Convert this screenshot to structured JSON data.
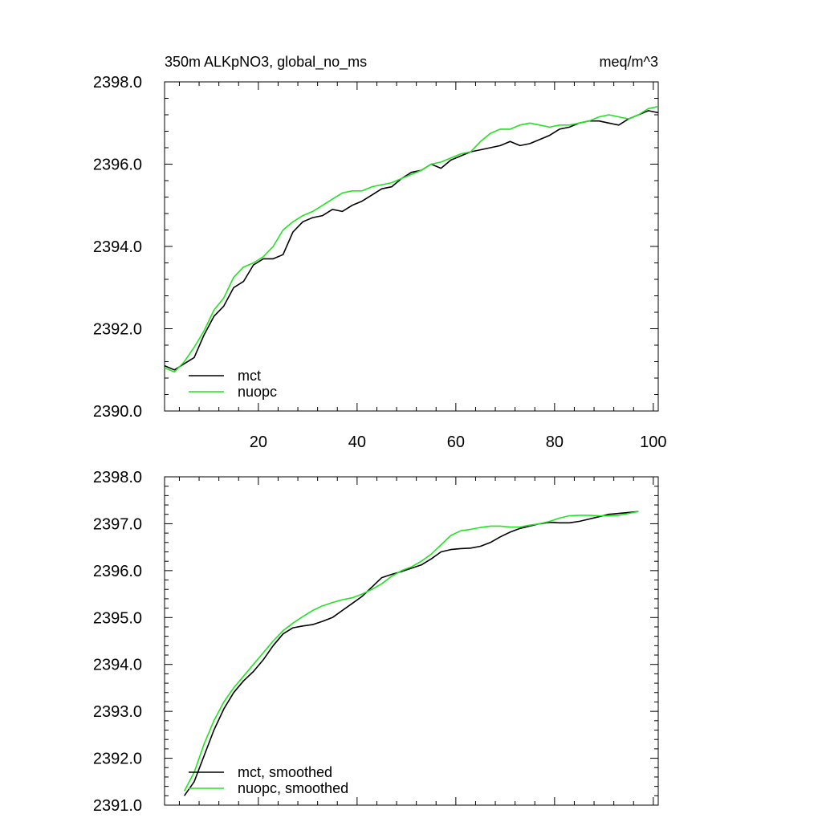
{
  "chart_data": [
    {
      "type": "line",
      "title_left": "350m ALKpNO3, global_no_ms",
      "title_right": "meq/m^3",
      "xlim": [
        1,
        101
      ],
      "ylim": [
        2390,
        2398
      ],
      "x_ticks": [
        20,
        40,
        60,
        80,
        100
      ],
      "x_tick_labels": [
        "20",
        "40",
        "60",
        "80",
        "100"
      ],
      "y_ticks": [
        2390,
        2392,
        2394,
        2396,
        2398
      ],
      "y_tick_labels": [
        "2390.0",
        "2392.0",
        "2394.0",
        "2396.0",
        "2398.0"
      ],
      "legend": "bottom-left",
      "series": [
        {
          "name": "mct",
          "color": "#000000",
          "x": [
            1,
            3,
            5,
            7,
            9,
            11,
            13,
            15,
            17,
            19,
            21,
            23,
            25,
            27,
            29,
            31,
            33,
            35,
            37,
            39,
            41,
            43,
            45,
            47,
            49,
            51,
            53,
            55,
            57,
            59,
            61,
            63,
            65,
            67,
            69,
            71,
            73,
            75,
            77,
            79,
            81,
            83,
            85,
            87,
            89,
            91,
            93,
            95,
            97,
            99,
            101
          ],
          "y": [
            2391.1,
            2391.0,
            2391.15,
            2391.3,
            2391.85,
            2392.3,
            2392.55,
            2393.0,
            2393.15,
            2393.55,
            2393.7,
            2393.7,
            2393.8,
            2394.35,
            2394.6,
            2394.7,
            2394.75,
            2394.9,
            2394.85,
            2395.0,
            2395.1,
            2395.25,
            2395.4,
            2395.45,
            2395.65,
            2395.8,
            2395.85,
            2396.0,
            2395.9,
            2396.1,
            2396.2,
            2396.3,
            2396.35,
            2396.4,
            2396.45,
            2396.55,
            2396.45,
            2396.5,
            2396.6,
            2396.7,
            2396.85,
            2396.9,
            2397.0,
            2397.05,
            2397.05,
            2397.0,
            2396.95,
            2397.1,
            2397.2,
            2397.3,
            2397.25
          ]
        },
        {
          "name": "nuopc",
          "color": "#22e322",
          "x": [
            1,
            3,
            5,
            7,
            9,
            11,
            13,
            15,
            17,
            19,
            21,
            23,
            25,
            27,
            29,
            31,
            33,
            35,
            37,
            39,
            41,
            43,
            45,
            47,
            49,
            51,
            53,
            55,
            57,
            59,
            61,
            63,
            65,
            67,
            69,
            71,
            73,
            75,
            77,
            79,
            81,
            83,
            85,
            87,
            89,
            91,
            93,
            95,
            97,
            99,
            101
          ],
          "y": [
            2391.05,
            2390.95,
            2391.2,
            2391.55,
            2391.95,
            2392.45,
            2392.75,
            2393.25,
            2393.5,
            2393.6,
            2393.75,
            2394.0,
            2394.4,
            2394.6,
            2394.75,
            2394.85,
            2395.0,
            2395.15,
            2395.3,
            2395.35,
            2395.35,
            2395.45,
            2395.5,
            2395.55,
            2395.65,
            2395.75,
            2395.85,
            2396.0,
            2396.05,
            2396.15,
            2396.25,
            2396.3,
            2396.55,
            2396.75,
            2396.85,
            2396.85,
            2396.95,
            2397.0,
            2396.95,
            2396.9,
            2396.95,
            2396.95,
            2397.0,
            2397.05,
            2397.15,
            2397.2,
            2397.15,
            2397.1,
            2397.2,
            2397.35,
            2397.4
          ]
        }
      ]
    },
    {
      "type": "line",
      "xlim": [
        1,
        101
      ],
      "ylim": [
        2391,
        2398
      ],
      "x_ticks": [
        20,
        40,
        60,
        80,
        100
      ],
      "y_ticks": [
        2391,
        2392,
        2393,
        2394,
        2395,
        2396,
        2397,
        2398
      ],
      "y_tick_labels": [
        "2391.0",
        "2392.0",
        "2393.0",
        "2394.0",
        "2395.0",
        "2396.0",
        "2397.0",
        "2398.0"
      ],
      "legend": "bottom-left",
      "series": [
        {
          "name": "mct, smoothed",
          "color": "#000000",
          "x": [
            5,
            7,
            9,
            11,
            13,
            15,
            17,
            19,
            21,
            23,
            25,
            27,
            29,
            31,
            33,
            35,
            37,
            39,
            41,
            43,
            45,
            47,
            49,
            51,
            53,
            55,
            57,
            59,
            61,
            63,
            65,
            67,
            69,
            71,
            73,
            75,
            77,
            79,
            81,
            83,
            85,
            87,
            89,
            91,
            93,
            95,
            97
          ],
          "y": [
            2391.2,
            2391.5,
            2392.05,
            2392.6,
            2393.05,
            2393.4,
            2393.65,
            2393.85,
            2394.1,
            2394.4,
            2394.65,
            2394.78,
            2394.82,
            2394.85,
            2394.92,
            2395.0,
            2395.15,
            2395.3,
            2395.45,
            2395.65,
            2395.85,
            2395.92,
            2395.98,
            2396.05,
            2396.12,
            2396.25,
            2396.4,
            2396.45,
            2396.47,
            2396.48,
            2396.52,
            2396.6,
            2396.72,
            2396.82,
            2396.9,
            2396.95,
            2397.0,
            2397.03,
            2397.02,
            2397.02,
            2397.05,
            2397.1,
            2397.15,
            2397.2,
            2397.22,
            2397.24,
            2397.26
          ]
        },
        {
          "name": "nuopc, smoothed",
          "color": "#22e322",
          "x": [
            5,
            7,
            9,
            11,
            13,
            15,
            17,
            19,
            21,
            23,
            25,
            27,
            29,
            31,
            33,
            35,
            37,
            39,
            41,
            43,
            45,
            47,
            49,
            51,
            53,
            55,
            57,
            59,
            61,
            63,
            65,
            67,
            69,
            71,
            73,
            75,
            77,
            79,
            81,
            83,
            85,
            87,
            89,
            91,
            93,
            95,
            97
          ],
          "y": [
            2391.3,
            2391.7,
            2392.3,
            2392.8,
            2393.2,
            2393.5,
            2393.75,
            2394.0,
            2394.25,
            2394.5,
            2394.72,
            2394.88,
            2395.02,
            2395.15,
            2395.25,
            2395.32,
            2395.38,
            2395.42,
            2395.5,
            2395.6,
            2395.72,
            2395.88,
            2396.0,
            2396.08,
            2396.2,
            2396.35,
            2396.55,
            2396.75,
            2396.85,
            2396.88,
            2396.92,
            2396.95,
            2396.95,
            2396.93,
            2396.93,
            2396.97,
            2397.0,
            2397.05,
            2397.12,
            2397.17,
            2397.18,
            2397.18,
            2397.17,
            2397.17,
            2397.18,
            2397.22,
            2397.26
          ]
        }
      ]
    }
  ]
}
